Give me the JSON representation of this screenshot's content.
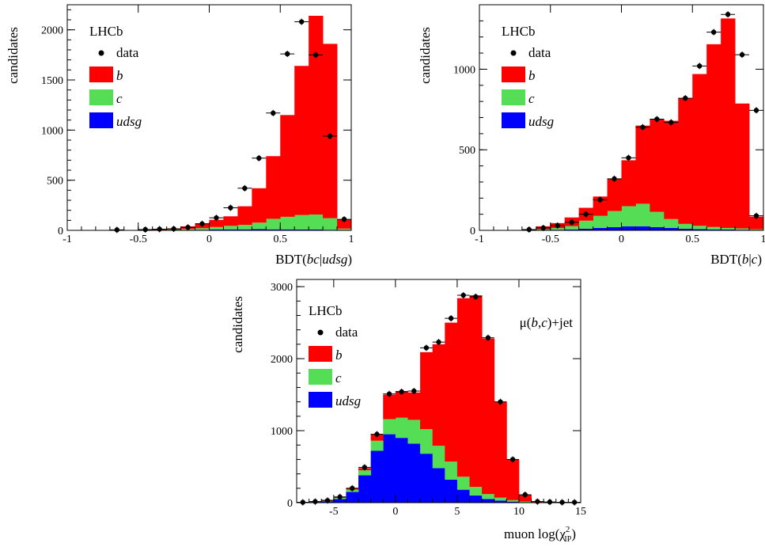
{
  "chart_data": [
    {
      "type": "histogram",
      "ylabel": "candidates",
      "xlabel_parts": [
        {
          "t": "BDT("
        },
        {
          "t": "bc",
          "i": true
        },
        {
          "t": "|"
        },
        {
          "t": "udsg",
          "i": true
        },
        {
          "t": ")"
        }
      ],
      "experiment": "LHCb",
      "legend": [
        {
          "label": "data",
          "kind": "marker"
        },
        {
          "label": "b",
          "kind": "fill",
          "color": "#ff0000"
        },
        {
          "label": "c",
          "kind": "fill",
          "color": "#55dd55"
        },
        {
          "label": "udsg",
          "kind": "fill",
          "color": "#0000ff"
        }
      ],
      "xlim": [
        -1,
        1
      ],
      "ylim": [
        0,
        2250
      ],
      "xticks": [
        -1,
        -0.5,
        0,
        0.5,
        1
      ],
      "xtick_labels": [
        "-1",
        "-0.5",
        "0",
        "0.5",
        "1"
      ],
      "yticks": [
        0,
        500,
        1000,
        1500,
        2000
      ],
      "ytick_labels": [
        "0",
        "500",
        "1000",
        "1500",
        "2000"
      ],
      "bin_edges": [
        -1.0,
        -0.9,
        -0.8,
        -0.7,
        -0.6,
        -0.5,
        -0.4,
        -0.3,
        -0.2,
        -0.1,
        0.0,
        0.1,
        0.2,
        0.3,
        0.4,
        0.5,
        0.6,
        0.7,
        0.8,
        0.9,
        1.0
      ],
      "udsg": [
        0,
        0,
        0,
        0,
        0,
        0,
        0,
        2,
        4,
        6,
        8,
        10,
        10,
        12,
        10,
        10,
        8,
        8,
        6,
        2
      ],
      "c": [
        0,
        0,
        0,
        0,
        0,
        2,
        4,
        6,
        10,
        15,
        25,
        35,
        45,
        65,
        105,
        125,
        145,
        150,
        115,
        15
      ],
      "b": [
        0,
        0,
        0,
        0,
        0,
        3,
        6,
        12,
        26,
        49,
        72,
        95,
        185,
        343,
        625,
        1015,
        1487,
        1982,
        1739,
        93
      ],
      "data_x": [
        -0.65,
        -0.45,
        -0.35,
        -0.25,
        -0.15,
        -0.05,
        0.05,
        0.15,
        0.25,
        0.35,
        0.45,
        0.55,
        0.65,
        0.75,
        0.85,
        0.95
      ],
      "data_y": [
        5,
        8,
        12,
        15,
        30,
        65,
        125,
        225,
        420,
        720,
        1170,
        1760,
        2080,
        1750,
        940,
        110
      ]
    },
    {
      "type": "histogram",
      "ylabel": "candidates",
      "xlabel_parts": [
        {
          "t": "BDT("
        },
        {
          "t": "b",
          "i": true
        },
        {
          "t": "|"
        },
        {
          "t": "c",
          "i": true
        },
        {
          "t": ")"
        }
      ],
      "experiment": "LHCb",
      "legend": [
        {
          "label": "data",
          "kind": "marker"
        },
        {
          "label": "b",
          "kind": "fill",
          "color": "#ff0000"
        },
        {
          "label": "c",
          "kind": "fill",
          "color": "#55dd55"
        },
        {
          "label": "udsg",
          "kind": "fill",
          "color": "#0000ff"
        }
      ],
      "xlim": [
        -1,
        1
      ],
      "ylim": [
        0,
        1400
      ],
      "xticks": [
        -1,
        -0.5,
        0,
        0.5,
        1
      ],
      "xtick_labels": [
        "-1",
        "-0.5",
        "0",
        "0.5",
        "1"
      ],
      "yticks": [
        0,
        500,
        1000
      ],
      "ytick_labels": [
        "0",
        "500",
        "1000"
      ],
      "bin_edges": [
        -1.0,
        -0.9,
        -0.8,
        -0.7,
        -0.6,
        -0.5,
        -0.4,
        -0.3,
        -0.2,
        -0.1,
        0.0,
        0.1,
        0.2,
        0.3,
        0.4,
        0.5,
        0.6,
        0.7,
        0.8,
        0.9,
        1.0
      ],
      "udsg": [
        0,
        0,
        0,
        0,
        2,
        4,
        6,
        10,
        15,
        20,
        25,
        25,
        20,
        15,
        10,
        8,
        6,
        5,
        4,
        2
      ],
      "c": [
        0,
        0,
        0,
        0,
        5,
        10,
        20,
        50,
        75,
        100,
        125,
        140,
        95,
        55,
        30,
        20,
        15,
        10,
        8,
        5
      ],
      "b": [
        0,
        0,
        0,
        5,
        18,
        31,
        54,
        80,
        120,
        200,
        285,
        485,
        575,
        610,
        780,
        942,
        1134,
        1300,
        775,
        78
      ],
      "data_x": [
        -0.65,
        -0.55,
        -0.45,
        -0.35,
        -0.25,
        -0.15,
        -0.05,
        0.05,
        0.15,
        0.25,
        0.35,
        0.45,
        0.55,
        0.65,
        0.75,
        0.85,
        0.95
      ],
      "data_y": [
        5,
        15,
        30,
        50,
        100,
        190,
        320,
        450,
        640,
        690,
        670,
        820,
        1020,
        1230,
        1340,
        1090,
        745
      ],
      "data_y_last": 90
    },
    {
      "type": "histogram",
      "ylabel": "candidates",
      "xlabel_parts": [
        {
          "t": "muon log(χ"
        },
        {
          "t": "2",
          "sup": true
        },
        {
          "t": "IP",
          "sub": true
        },
        {
          "t": ")"
        }
      ],
      "experiment": "LHCb",
      "annotation_parts": [
        {
          "t": "μ("
        },
        {
          "t": "b",
          "i": true
        },
        {
          "t": ","
        },
        {
          "t": "c",
          "i": true
        },
        {
          "t": ")+jet"
        }
      ],
      "legend": [
        {
          "label": "data",
          "kind": "marker"
        },
        {
          "label": "b",
          "kind": "fill",
          "color": "#ff0000"
        },
        {
          "label": "c",
          "kind": "fill",
          "color": "#55dd55"
        },
        {
          "label": "udsg",
          "kind": "fill",
          "color": "#0000ff"
        }
      ],
      "xlim": [
        -8,
        15
      ],
      "ylim": [
        0,
        3100
      ],
      "xticks": [
        -5,
        0,
        5,
        10,
        15
      ],
      "xtick_labels": [
        "-5",
        "0",
        "5",
        "10",
        "15"
      ],
      "yticks": [
        0,
        1000,
        2000,
        3000
      ],
      "ytick_labels": [
        "0",
        "1000",
        "2000",
        "3000"
      ],
      "bin_edges": [
        -8,
        -7,
        -6,
        -5,
        -4,
        -3,
        -2,
        -1,
        0,
        1,
        2,
        3,
        4,
        5,
        6,
        7,
        8,
        9,
        10,
        11,
        12,
        13,
        14,
        15
      ],
      "udsg": [
        5,
        10,
        20,
        50,
        150,
        380,
        720,
        950,
        900,
        820,
        680,
        480,
        320,
        180,
        100,
        50,
        30,
        15,
        5,
        0,
        0,
        0,
        0
      ],
      "c": [
        2,
        3,
        5,
        15,
        30,
        70,
        140,
        210,
        280,
        330,
        340,
        310,
        250,
        180,
        120,
        70,
        40,
        20,
        10,
        0,
        0,
        0,
        0
      ],
      "b": [
        3,
        7,
        15,
        15,
        20,
        30,
        90,
        340,
        370,
        380,
        1070,
        1410,
        1930,
        2480,
        2660,
        2160,
        1330,
        565,
        95,
        20,
        10,
        5,
        5
      ],
      "data_x": [
        -7.5,
        -6.5,
        -5.5,
        -4.5,
        -3.5,
        -2.5,
        -1.5,
        -0.5,
        0.5,
        1.5,
        2.5,
        3.5,
        4.5,
        5.5,
        6.5,
        7.5,
        8.5,
        9.5,
        10.5,
        11.5,
        12.5,
        13.5,
        14.5
      ],
      "data_y": [
        5,
        15,
        30,
        80,
        200,
        490,
        950,
        1510,
        1540,
        1550,
        2150,
        2230,
        2560,
        2880,
        2860,
        2290,
        1400,
        600,
        110,
        15,
        10,
        5,
        5
      ]
    }
  ]
}
